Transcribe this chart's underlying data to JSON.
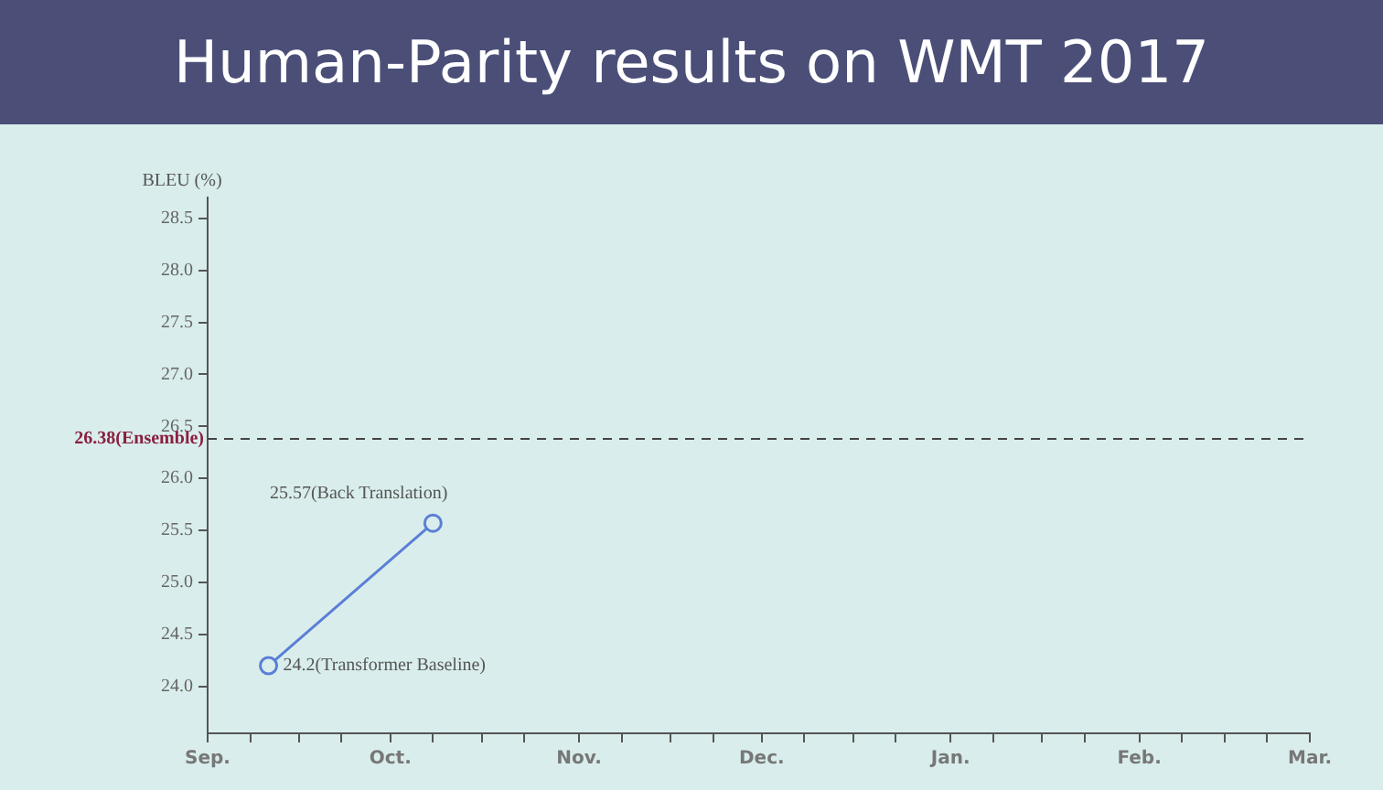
{
  "chart_data": {
    "type": "line",
    "title": "Human-Parity results on WMT 2017",
    "ylabel": "BLEU (%)",
    "x": [
      "2017-09-11",
      "2017-10-08"
    ],
    "series": [
      {
        "color": "#5b7fd6",
        "values": [
          24.2,
          25.57
        ]
      }
    ],
    "xlim": [
      "2017-09-01",
      "2018-03-01"
    ],
    "xticks": [
      {
        "value": "2017-09-01",
        "label": "Sep."
      },
      {
        "value": "2017-09-08",
        "label": null
      },
      {
        "value": "2017-09-16",
        "label": null
      },
      {
        "value": "2017-09-23",
        "label": null
      },
      {
        "value": "2017-10-01",
        "label": "Oct."
      },
      {
        "value": "2017-10-08",
        "label": null
      },
      {
        "value": "2017-10-16",
        "label": null
      },
      {
        "value": "2017-10-23",
        "label": null
      },
      {
        "value": "2017-11-01",
        "label": "Nov."
      },
      {
        "value": "2017-11-08",
        "label": null
      },
      {
        "value": "2017-11-16",
        "label": null
      },
      {
        "value": "2017-11-23",
        "label": null
      },
      {
        "value": "2017-12-01",
        "label": "Dec."
      },
      {
        "value": "2017-12-08",
        "label": null
      },
      {
        "value": "2017-12-16",
        "label": null
      },
      {
        "value": "2017-12-23",
        "label": null
      },
      {
        "value": "2018-01-01",
        "label": "Jan."
      },
      {
        "value": "2018-01-08",
        "label": null
      },
      {
        "value": "2018-01-16",
        "label": null
      },
      {
        "value": "2018-01-23",
        "label": null
      },
      {
        "value": "2018-02-01",
        "label": "Feb."
      },
      {
        "value": "2018-02-08",
        "label": null
      },
      {
        "value": "2018-02-15",
        "label": null
      },
      {
        "value": "2018-02-22",
        "label": null
      },
      {
        "value": "2018-03-01",
        "label": "Mar."
      }
    ],
    "ylim": [
      23.55,
      28.7
    ],
    "yticks": [
      {
        "value": 24,
        "label": "24.0"
      },
      {
        "value": 24.5,
        "label": "24.5"
      },
      {
        "value": 25,
        "label": "25.0"
      },
      {
        "value": 25.5,
        "label": "25.5"
      },
      {
        "value": 26,
        "label": "26.0"
      },
      {
        "value": 26.5,
        "label": "26.5"
      },
      {
        "value": 27,
        "label": "27.0"
      },
      {
        "value": 27.5,
        "label": "27.5"
      },
      {
        "value": 28,
        "label": "28.0"
      },
      {
        "value": 28.5,
        "label": "28.5"
      }
    ],
    "ref_lines": [
      {
        "axis": "y",
        "value": 26.38,
        "label": "26.38(Ensemble)",
        "color": "#444444",
        "line_style": "dashed"
      }
    ],
    "annotations": [
      {
        "text": "24.2(Transformer Baseline)",
        "x": "2017-09-11",
        "y": 24.2
      },
      {
        "text": "25.57(Back Translation)",
        "x": "2017-10-08",
        "y": 25.57
      }
    ],
    "grid": false,
    "legend": false,
    "marker": "circle",
    "line_style": "solid"
  }
}
